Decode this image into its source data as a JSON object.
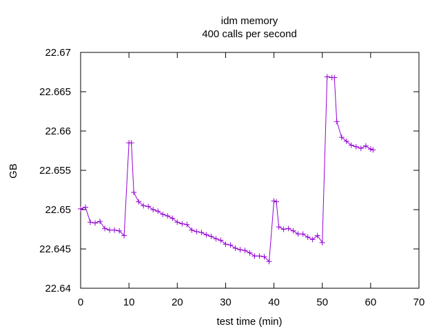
{
  "chart_data": {
    "type": "line",
    "title": "idm memory",
    "subtitle": "400 calls per second",
    "xlabel": "test time (min)",
    "ylabel": "GB",
    "xlim": [
      0,
      70
    ],
    "ylim": [
      22.64,
      22.67
    ],
    "xticks": [
      0,
      10,
      20,
      30,
      40,
      50,
      60,
      70
    ],
    "yticks": [
      22.64,
      22.645,
      22.65,
      22.655,
      22.66,
      22.665,
      22.67
    ],
    "xtick_labels": [
      "0",
      "10",
      "20",
      "30",
      "40",
      "50",
      "60",
      "70"
    ],
    "ytick_labels": [
      "22.64",
      "22.645",
      "22.65",
      "22.655",
      "22.66",
      "22.665",
      "22.67"
    ],
    "grid": false,
    "legend": "none",
    "marker": "plus",
    "series_color": "#9400d3",
    "series": [
      {
        "x": [
          0,
          1,
          2,
          3,
          4,
          5,
          6,
          7,
          8,
          9,
          10,
          10.5,
          11,
          12,
          13,
          14,
          15,
          16,
          17,
          18,
          19,
          20,
          21,
          22,
          23,
          24,
          25,
          26,
          27,
          28,
          29,
          30,
          31,
          32,
          33,
          34,
          35,
          36,
          37,
          38,
          39,
          40,
          40.5,
          41,
          42,
          43,
          44,
          45,
          46,
          47,
          48,
          49,
          50,
          51,
          52,
          52.5,
          53,
          54,
          55,
          56,
          57,
          58,
          59,
          60,
          60.5
        ],
        "y": [
          22.6501,
          22.6503,
          22.6484,
          22.6483,
          22.6485,
          22.6476,
          22.6474,
          22.6474,
          22.6473,
          22.6467,
          22.6585,
          22.6585,
          22.6522,
          22.651,
          22.6505,
          22.6504,
          22.65,
          22.6498,
          22.6494,
          22.6492,
          22.6489,
          22.6484,
          22.6482,
          22.6481,
          22.6474,
          22.6472,
          22.6471,
          22.6468,
          22.6466,
          22.6463,
          22.6461,
          22.6456,
          22.6455,
          22.6451,
          22.6449,
          22.6448,
          22.6445,
          22.6441,
          22.6441,
          22.644,
          22.6434,
          22.6511,
          22.651,
          22.6478,
          22.6475,
          22.6476,
          22.6473,
          22.6469,
          22.6469,
          22.6465,
          22.6462,
          22.6467,
          22.6458,
          22.6669,
          22.6668,
          22.6668,
          22.6612,
          22.6592,
          22.6587,
          22.6582,
          22.658,
          22.6578,
          22.6581,
          22.6577,
          22.6576
        ]
      }
    ]
  }
}
